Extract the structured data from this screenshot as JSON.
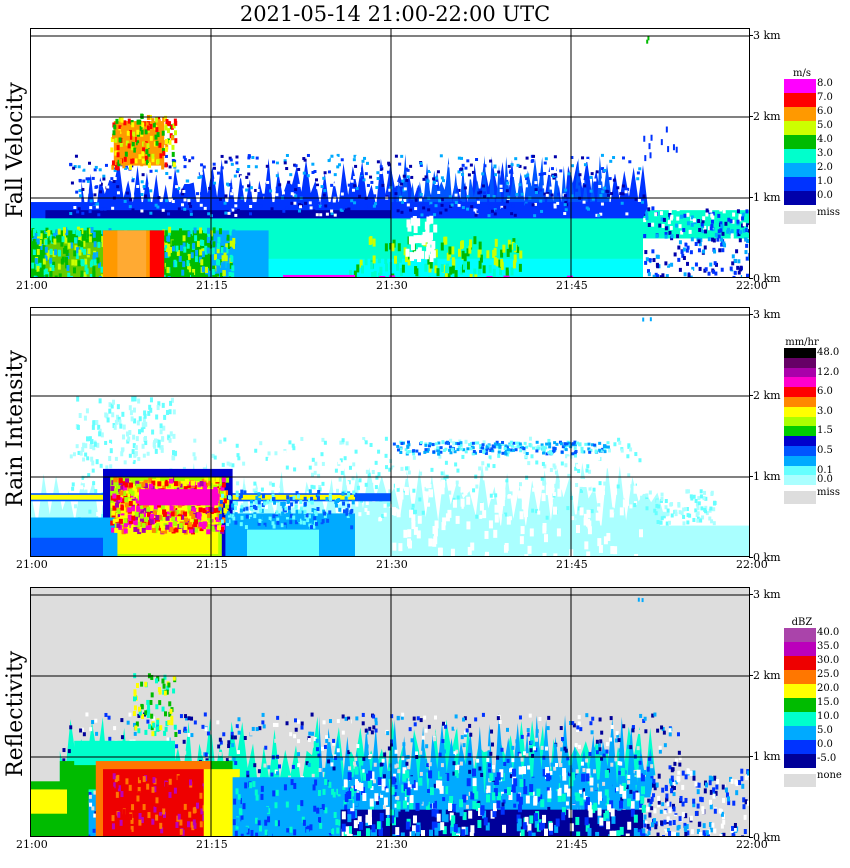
{
  "title": "2021-05-14   21:00-22:00 UTC",
  "chart_data": [
    {
      "type": "heatmap",
      "title": "Fall Velocity",
      "ylabel": "Fall Velocity",
      "x_tick_labels": [
        "21:00",
        "21:15",
        "21:30",
        "21:45",
        "22:00"
      ],
      "y_tick_labels": [
        "0 km",
        "1 km",
        "2 km",
        "3 km"
      ],
      "xlim": [
        "21:00",
        "22:00"
      ],
      "ylim": [
        0,
        3
      ],
      "grid": true,
      "background": "#ffffff",
      "colorbar_unit": "m/s",
      "colorbar": [
        {
          "label": "8.0",
          "color": "#ff00ff"
        },
        {
          "label": "7.0",
          "color": "#ff0000"
        },
        {
          "label": "6.0",
          "color": "#ff9900"
        },
        {
          "label": "5.0",
          "color": "#ccff00"
        },
        {
          "label": "4.0",
          "color": "#00bb00"
        },
        {
          "label": "3.0",
          "color": "#00ffcc"
        },
        {
          "label": "2.0",
          "color": "#00aaff"
        },
        {
          "label": "1.0",
          "color": "#0033ff"
        },
        {
          "label": "0.0",
          "color": "#0000aa"
        }
      ],
      "missing_label": "miss",
      "missing_color": "#dddddd"
    },
    {
      "type": "heatmap",
      "title": "Rain Intensity",
      "ylabel": "Rain Intensity",
      "x_tick_labels": [
        "21:00",
        "21:15",
        "21:30",
        "21:45",
        "22:00"
      ],
      "y_tick_labels": [
        "0 km",
        "1 km",
        "2 km",
        "3 km"
      ],
      "xlim": [
        "21:00",
        "22:00"
      ],
      "ylim": [
        0,
        3
      ],
      "grid": true,
      "background": "#ffffff",
      "colorbar_unit": "mm/hr",
      "colorbar": [
        {
          "label": "48.0",
          "color": "#000000"
        },
        {
          "label": "",
          "color": "#660066"
        },
        {
          "label": "12.0",
          "color": "#aa00aa"
        },
        {
          "label": "",
          "color": "#ff00cc"
        },
        {
          "label": "6.0",
          "color": "#ff0000"
        },
        {
          "label": "",
          "color": "#ff8800"
        },
        {
          "label": "3.0",
          "color": "#ffff00"
        },
        {
          "label": "",
          "color": "#aaff00"
        },
        {
          "label": "1.5",
          "color": "#00cc00"
        },
        {
          "label": "",
          "color": "#0000cc"
        },
        {
          "label": "0.5",
          "color": "#0055ff"
        },
        {
          "label": "",
          "color": "#00aaff"
        },
        {
          "label": "0.1",
          "color": "#66ffff"
        },
        {
          "label": "0.0",
          "color": "#aaffff"
        }
      ],
      "missing_label": "miss",
      "missing_color": "#dddddd"
    },
    {
      "type": "heatmap",
      "title": "Reflectivity",
      "ylabel": "Reflectivity",
      "x_tick_labels": [
        "21:00",
        "21:15",
        "21:30",
        "21:45",
        "22:00"
      ],
      "y_tick_labels": [
        "0 km",
        "1 km",
        "2 km",
        "3 km"
      ],
      "xlim": [
        "21:00",
        "22:00"
      ],
      "ylim": [
        0,
        3
      ],
      "grid": true,
      "background": "#dddddd",
      "colorbar_unit": "dBZ",
      "colorbar": [
        {
          "label": "40.0",
          "color": "#aa44aa"
        },
        {
          "label": "35.0",
          "color": "#bb00bb"
        },
        {
          "label": "30.0",
          "color": "#ee0000"
        },
        {
          "label": "25.0",
          "color": "#ff7700"
        },
        {
          "label": "20.0",
          "color": "#ffff00"
        },
        {
          "label": "15.0",
          "color": "#00bb00"
        },
        {
          "label": "10.0",
          "color": "#00ffcc"
        },
        {
          "label": "5.0",
          "color": "#00aaff"
        },
        {
          "label": "0.0",
          "color": "#0033ff"
        },
        {
          "label": "-5.0",
          "color": "#000099"
        }
      ],
      "missing_label": "none",
      "missing_color": "#dddddd"
    }
  ]
}
